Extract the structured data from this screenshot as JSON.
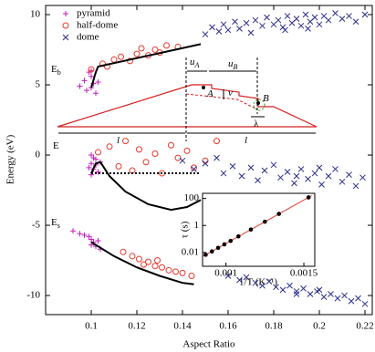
{
  "chart_data": {
    "type": "scatter",
    "xlabel": "Aspect Ratio",
    "ylabel": "Energy (eV)",
    "xlim": [
      0.08,
      0.2232
    ],
    "ylim": [
      -11.36,
      10.65
    ],
    "xticks": [
      0.1,
      0.12,
      0.14,
      0.16,
      0.18,
      0.2,
      0.22
    ],
    "yticks": [
      -10,
      -5,
      0,
      5,
      10
    ],
    "legend": "upper left",
    "series": [
      {
        "name": "pyramid",
        "color": "#c21fbd",
        "marker": "plus",
        "x": [
          0.095,
          0.097,
          0.098,
          0.1,
          0.1,
          0.101,
          0.102,
          0.1,
          0.099,
          0.103,
          0.1,
          0.101,
          0.1,
          0.102,
          0.099,
          0.101,
          0.103,
          0.1,
          0.102,
          0.104,
          0.092,
          0.095,
          0.097,
          0.099,
          0.1,
          0.101,
          0.102,
          0.1,
          0.103,
          0.104
        ],
        "y": [
          4.9,
          5.3,
          4.6,
          5.6,
          6.0,
          5.1,
          4.4,
          4.8,
          5.9,
          5.2,
          -0.6,
          -1.0,
          -1.4,
          -0.3,
          -0.9,
          -0.2,
          -1.2,
          0.0,
          -0.7,
          -0.5,
          -5.4,
          -5.6,
          -5.7,
          -5.8,
          -6.0,
          -6.2,
          -6.5,
          -6.4,
          -6.1,
          -6.7
        ]
      },
      {
        "name": "half-dome",
        "color": "#e8382b",
        "marker": "circle",
        "x": [
          0.1,
          0.105,
          0.11,
          0.113,
          0.117,
          0.12,
          0.122,
          0.125,
          0.128,
          0.13,
          0.133,
          0.138,
          0.107,
          0.103,
          0.108,
          0.112,
          0.115,
          0.118,
          0.121,
          0.124,
          0.128,
          0.131,
          0.135,
          0.138,
          0.142,
          0.145,
          0.15,
          0.155,
          0.114,
          0.118,
          0.121,
          0.125,
          0.128,
          0.131,
          0.134,
          0.137,
          0.14,
          0.144,
          0.123,
          0.129
        ],
        "y": [
          6.1,
          6.5,
          6.8,
          7.0,
          6.7,
          7.2,
          7.6,
          7.1,
          7.5,
          7.3,
          7.8,
          7.7,
          6.3,
          0.2,
          0.6,
          -0.8,
          1.0,
          -1.1,
          0.4,
          -0.5,
          0.1,
          -1.3,
          0.7,
          -0.2,
          0.3,
          -0.9,
          -0.4,
          1.0,
          -6.9,
          -7.2,
          -7.4,
          -7.6,
          -7.9,
          -8.0,
          -8.2,
          -8.3,
          -8.4,
          -8.6,
          -7.8,
          -7.5
        ]
      },
      {
        "name": "dome",
        "color": "#2a2e8a",
        "marker": "cross",
        "x": [
          0.15,
          0.153,
          0.156,
          0.158,
          0.16,
          0.163,
          0.165,
          0.168,
          0.17,
          0.172,
          0.175,
          0.177,
          0.18,
          0.182,
          0.184,
          0.186,
          0.188,
          0.19,
          0.192,
          0.194,
          0.196,
          0.198,
          0.2,
          0.202,
          0.204,
          0.207,
          0.21,
          0.213,
          0.216,
          0.22,
          0.185,
          0.195,
          0.14,
          0.145,
          0.15,
          0.155,
          0.158,
          0.162,
          0.166,
          0.17,
          0.173,
          0.176,
          0.18,
          0.183,
          0.186,
          0.189,
          0.192,
          0.195,
          0.198,
          0.201,
          0.204,
          0.207,
          0.21,
          0.213,
          0.216,
          0.219,
          0.2,
          0.19,
          0.16,
          0.165,
          0.168,
          0.172,
          0.175,
          0.178,
          0.181,
          0.184,
          0.187,
          0.19,
          0.193,
          0.196,
          0.199,
          0.202,
          0.205,
          0.208,
          0.211,
          0.214,
          0.217,
          0.22,
          0.19,
          0.2
        ],
        "y": [
          8.6,
          9.1,
          8.8,
          9.3,
          8.9,
          9.5,
          9.0,
          9.4,
          8.7,
          9.6,
          9.2,
          9.8,
          9.3,
          9.6,
          9.1,
          9.9,
          9.4,
          9.7,
          9.2,
          10.0,
          9.5,
          9.8,
          9.3,
          9.9,
          9.6,
          10.1,
          9.7,
          9.9,
          9.5,
          10.0,
          8.9,
          9.0,
          -0.4,
          -1.0,
          -0.6,
          -0.2,
          -1.3,
          -0.8,
          -1.5,
          -0.9,
          -1.8,
          -1.1,
          -0.7,
          -1.6,
          -1.2,
          -2.0,
          -1.0,
          -1.7,
          -1.3,
          -2.1,
          -1.5,
          -1.0,
          -1.9,
          -1.4,
          -2.2,
          -1.6,
          -0.9,
          -1.5,
          -8.6,
          -8.9,
          -8.7,
          -9.1,
          -9.3,
          -9.0,
          -9.4,
          -9.6,
          -9.3,
          -9.7,
          -9.5,
          -9.9,
          -9.7,
          -10.1,
          -9.9,
          -10.2,
          -10.0,
          -10.4,
          -10.2,
          -10.6,
          -9.9,
          -9.6
        ]
      }
    ],
    "curves": [
      {
        "color": "#000000",
        "style": "solid",
        "x": [
          0.1,
          0.102,
          0.103,
          0.148
        ],
        "y": [
          4.8,
          5.9,
          6.3,
          7.9
        ]
      },
      {
        "color": "#000000",
        "style": "solid",
        "x": [
          0.1,
          0.102,
          0.104,
          0.108,
          0.115,
          0.125,
          0.135,
          0.142,
          0.148
        ],
        "y": [
          -1.3,
          -0.6,
          -0.5,
          -1.5,
          -2.6,
          -3.5,
          -3.9,
          -3.7,
          -3.2
        ]
      },
      {
        "color": "#000000",
        "style": "dotted",
        "x": [
          0.1,
          0.148
        ],
        "y": [
          -1.3,
          -1.3
        ]
      },
      {
        "color": "#000000",
        "style": "solid",
        "x": [
          0.1,
          0.11,
          0.12,
          0.13,
          0.14,
          0.145
        ],
        "y": [
          -6.2,
          -7.2,
          -8.0,
          -8.6,
          -9.1,
          -9.2
        ]
      }
    ],
    "band_labels": [
      {
        "text": "E",
        "sub": "b"
      },
      {
        "text": "E"
      },
      {
        "text": "E",
        "sub": "s"
      }
    ],
    "schematic_labels": [
      {
        "text": "l"
      },
      {
        "text": "l"
      },
      {
        "text": "u",
        "sub": "A"
      },
      {
        "text": "u",
        "sub": "B"
      },
      {
        "text": "A"
      },
      {
        "text": "B"
      },
      {
        "text": "v"
      },
      {
        "text": "λ"
      }
    ],
    "inset": {
      "type": "scatter",
      "xlabel": "1/T (K⁻¹)",
      "ylabel": "τ (s)",
      "xlim": [
        0.00085,
        0.00157
      ],
      "ylim": [
        0.00095,
        240
      ],
      "log_y": true,
      "xticks": [
        0.001,
        0.0015
      ],
      "yticks": [
        0.01,
        1,
        100
      ],
      "color": "#000000",
      "x": [
        0.00087,
        0.00091,
        0.00095,
        0.00099,
        0.00103,
        0.00108,
        0.00116,
        0.00125,
        0.00134,
        0.00153
      ],
      "y": [
        0.0068,
        0.012,
        0.022,
        0.04,
        0.072,
        0.155,
        0.5,
        1.9,
        7.2,
        120
      ],
      "fit": {
        "color": "#e8382b",
        "x": [
          0.00085,
          0.00155
        ],
        "y": [
          0.005,
          160
        ]
      }
    }
  }
}
